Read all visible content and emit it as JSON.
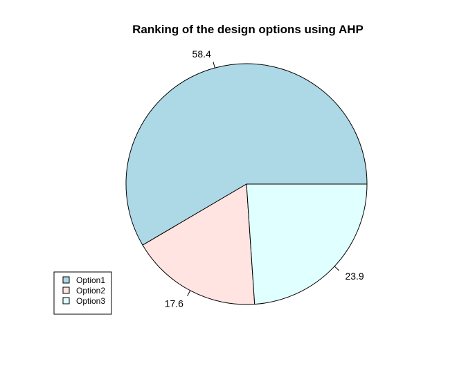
{
  "chart_data": {
    "type": "pie",
    "title": "Ranking of the design options using AHP",
    "categories": [
      "Option1",
      "Option2",
      "Option3"
    ],
    "values": [
      58.4,
      17.6,
      23.9
    ],
    "labels": [
      "58.4",
      "17.6",
      "23.9"
    ],
    "colors": [
      "#add8e6",
      "#ffe4e1",
      "#e0ffff"
    ],
    "start_angle_deg": 0,
    "direction": "counterclockwise",
    "legend": {
      "position": "bottom-left",
      "entries": [
        "Option1",
        "Option2",
        "Option3"
      ]
    }
  }
}
